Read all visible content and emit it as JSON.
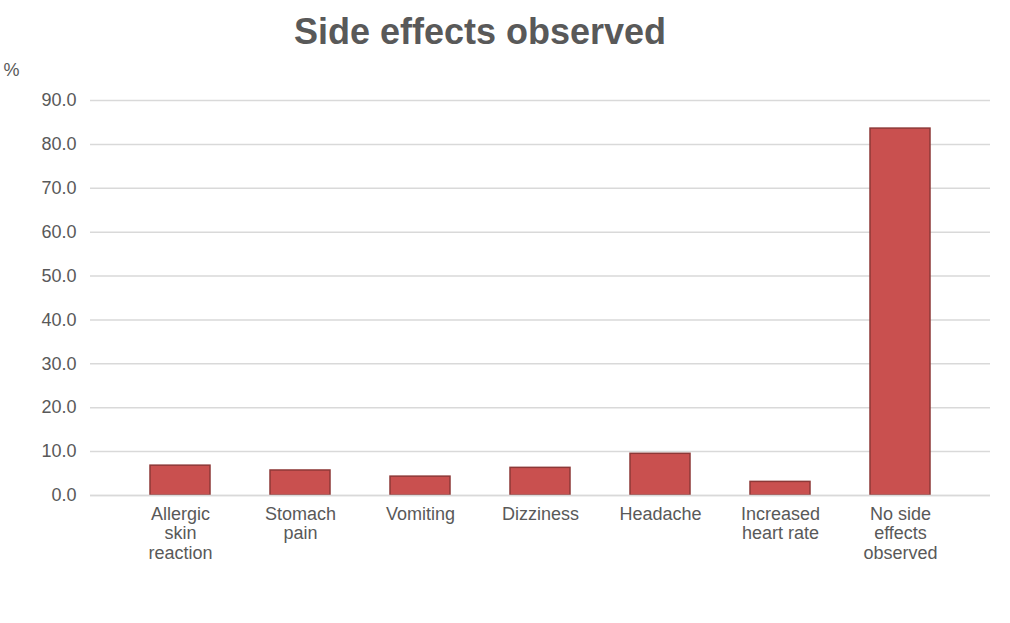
{
  "chart_data": {
    "type": "bar",
    "title": "Side effects observed",
    "ylabel": "%",
    "categories": [
      "Allergic skin reaction",
      "Stomach pain",
      "Vomiting",
      "Dizziness",
      "Headache",
      "Increased heart rate",
      "No side effects observed"
    ],
    "values": [
      6.8,
      5.7,
      4.3,
      6.3,
      9.5,
      3.1,
      83.6
    ],
    "color": "#c9504f",
    "ylim": [
      0,
      90
    ],
    "yticks": [
      {
        "value": 0,
        "label": "0.0"
      },
      {
        "value": 10,
        "label": "10.0"
      },
      {
        "value": 20,
        "label": "20.0"
      },
      {
        "value": 30,
        "label": "30.0"
      },
      {
        "value": 40,
        "label": "40.0"
      },
      {
        "value": 50,
        "label": "50.0"
      },
      {
        "value": 60,
        "label": "60.0"
      },
      {
        "value": 70,
        "label": "70.0"
      },
      {
        "value": 80,
        "label": "80.0"
      },
      {
        "value": 90,
        "label": "90.0"
      }
    ],
    "grid": true
  }
}
